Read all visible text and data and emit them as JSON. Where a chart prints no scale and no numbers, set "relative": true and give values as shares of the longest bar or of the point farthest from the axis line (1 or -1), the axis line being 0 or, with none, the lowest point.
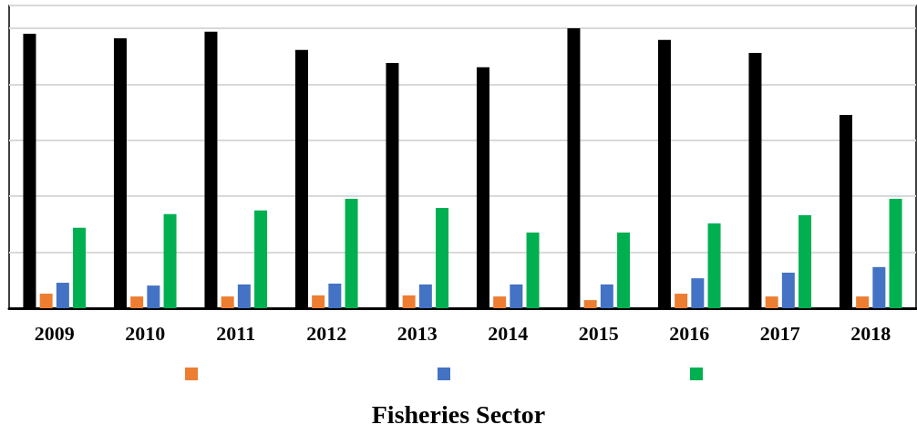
{
  "chart_data": {
    "type": "bar",
    "title": "Fisheries Sector",
    "relative": true,
    "grid": "y",
    "categories": [
      "2009",
      "2010",
      "2011",
      "2012",
      "2013",
      "2014",
      "2015",
      "2016",
      "2017",
      "2018"
    ],
    "series": [
      {
        "color": "#000000",
        "values": [
          0.98,
          0.964,
          0.987,
          0.922,
          0.876,
          0.86,
          1,
          0.958,
          0.912,
          0.69
        ]
      },
      {
        "color": "#ed7d31",
        "values": [
          0.052,
          0.042,
          0.042,
          0.046,
          0.046,
          0.042,
          0.029,
          0.052,
          0.042,
          0.042
        ]
      },
      {
        "color": "#4472c4",
        "values": [
          0.091,
          0.081,
          0.085,
          0.088,
          0.085,
          0.085,
          0.085,
          0.107,
          0.127,
          0.147
        ]
      },
      {
        "color": "#00b050",
        "values": [
          0.287,
          0.336,
          0.349,
          0.391,
          0.358,
          0.27,
          0.27,
          0.303,
          0.332,
          0.391
        ]
      }
    ]
  }
}
